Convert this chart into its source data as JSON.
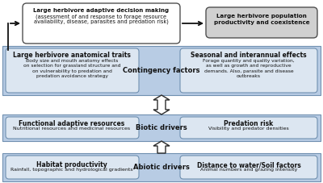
{
  "white": "#ffffff",
  "box_blue": "#b8cce4",
  "inner_box_blue": "#dce6f1",
  "gray_box": "#d0d0d0",
  "edge_color": "#7090b0",
  "dark_edge": "#505050",
  "arrow_color": "#2a2a2a",
  "text_color": "#111111",
  "top_box1_line1": "Large herbivore adaptive decision making",
  "top_box1_line2": "(assessment of and response to forage resource",
  "top_box1_line3": "availability, disease, parasites and predation risk)",
  "top_box2_line1": "Large herbivore population",
  "top_box2_line2": "productivity and coexistence",
  "row2_label": "Contingency factors",
  "row2_left_title": "Large herbivore anatomical traits",
  "row2_left_body": "Body size and mouth anatomy effects\non selection for grassland structure and\non vulnerability to predation and\npredation avoidance strategy",
  "row2_right_title": "Seasonal and interannual effects",
  "row2_right_body": "Forage quantity and quality variation,\nas well as growth and reproductive\ndemands. Also, parasite and disease\noutbreaks",
  "row3_label": "Biotic drivers",
  "row3_left_title": "Functional adaptive resources",
  "row3_left_body": "Nutritional resources and medicinal resources",
  "row3_right_title": "Predation risk",
  "row3_right_body": "Visibility and predator densities",
  "row4_label": "Abiotic drivers",
  "row4_left_title": "Habitat productivity",
  "row4_left_body": "Rainfall, topographic and hydrological gradients",
  "row4_right_title": "Distance to water/Soil factors",
  "row4_right_body": "Animal numbers and grazing intensity"
}
